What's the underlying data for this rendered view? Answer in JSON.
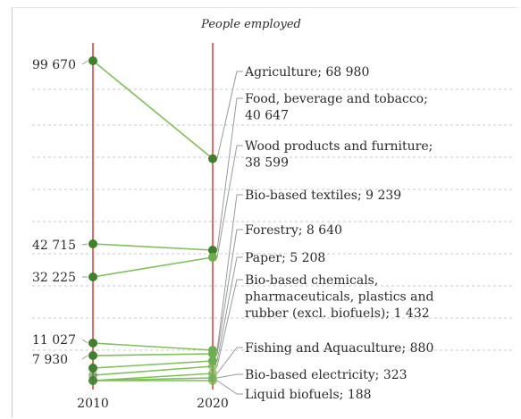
{
  "chart_data": {
    "type": "line",
    "title": "People employed",
    "categories": [
      "2010",
      "2020"
    ],
    "xlabel": "",
    "ylabel": "",
    "left_labels": [
      "99 670",
      "42 715",
      "32 225",
      "11 027",
      "7 930"
    ],
    "series": [
      {
        "name": "Agriculture",
        "value_label": "68 980",
        "values": [
          99670,
          68980
        ]
      },
      {
        "name": "Food, beverage and tobacco",
        "value_label": "40 647",
        "values": [
          42715,
          40647
        ]
      },
      {
        "name": "Wood products and furniture",
        "value_label": "38 599",
        "values": [
          32225,
          38599
        ]
      },
      {
        "name": "Bio-based textiles",
        "value_label": "9 239",
        "values": [
          11027,
          9239
        ]
      },
      {
        "name": "Forestry",
        "value_label": "8 640",
        "values": [
          7930,
          8640
        ]
      },
      {
        "name": "Paper",
        "value_label": "5 208",
        "values": [
          4500,
          5208
        ]
      },
      {
        "name": "Bio-based chemicals, pharmaceuticals, plastics and rubber (excl. biofuels)",
        "value_label": "1 432",
        "values": [
          1900,
          1432
        ]
      },
      {
        "name": "Fishing and Aquaculture",
        "value_label": "880",
        "values": [
          1100,
          880
        ]
      },
      {
        "name": "Bio-based electricity",
        "value_label": "323",
        "values": [
          500,
          323
        ]
      },
      {
        "name": "Liquid biofuels",
        "value_label": "188",
        "values": [
          250,
          188
        ]
      }
    ],
    "label_lines": [
      [
        "Agriculture; 68 980"
      ],
      [
        "Food, beverage and tobacco;",
        "40 647"
      ],
      [
        "Wood products and furniture;",
        "38 599"
      ],
      [
        "Bio-based textiles; 9 239"
      ],
      [
        "Forestry; 8 640"
      ],
      [
        "Paper; 5 208"
      ],
      [
        "Bio-based chemicals,",
        "pharmaceuticals, plastics and",
        "rubber (excl. biofuels); 1 432"
      ],
      [
        "Fishing and Aquaculture; 880"
      ],
      [
        "Bio-based electricity; 323"
      ],
      [
        "Liquid biofuels; 188"
      ]
    ],
    "ylim": [
      0,
      105000
    ],
    "grid": true,
    "colors": {
      "line": "#7fbf5a",
      "marker": "#3f7f2e",
      "axis": "#e06c6c",
      "grid": "#c9c9c9",
      "leader": "#9a9a9a"
    }
  }
}
